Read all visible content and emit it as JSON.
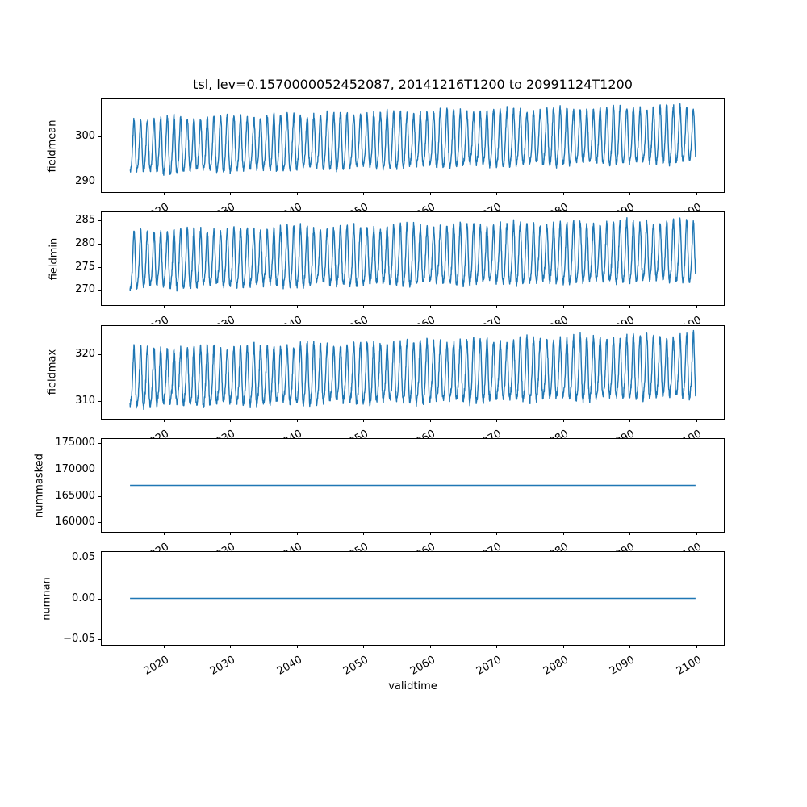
{
  "figure": {
    "background": "#ffffff"
  },
  "chart_data": {
    "type": "line",
    "title": "tsl, lev=0.1570000052452087, 20141216T1200 to 20991124T1200",
    "variable": "tsl",
    "level": "0.1570000052452087",
    "time_range": {
      "start": "20141216T1200",
      "end": "20991124T1200"
    },
    "xlabel": "validtime",
    "x_start_year": 2014.96,
    "x_end_year": 2099.9,
    "xlim": [
      2010.71,
      2104.15
    ],
    "xticks": [
      2020,
      2030,
      2040,
      2050,
      2060,
      2070,
      2080,
      2090,
      2100
    ],
    "xtick_labels": [
      "2020",
      "2030",
      "2040",
      "2050",
      "2060",
      "2070",
      "2080",
      "2090",
      "2100"
    ],
    "line_color": "#1f77b4",
    "axis_color": "#000000",
    "grid": false,
    "legend_position": "none",
    "subplots": [
      {
        "ylabel": "fieldmean",
        "yticks": [
          290,
          300
        ],
        "ytick_labels": [
          "290",
          "300"
        ],
        "ylim": [
          287.8,
          308.0
        ],
        "series": {
          "kind": "seasonal",
          "seed": 11,
          "mean_start": 297.2,
          "mean_end": 299.8,
          "amplitude": 5.6,
          "amp_growth": 0.05,
          "harmonic2": 1.0,
          "noise": 0.8,
          "approx_range_start": [
            290.0,
            304.3
          ],
          "approx_range_end": [
            292.8,
            306.9
          ]
        }
      },
      {
        "ylabel": "fieldmin",
        "yticks": [
          270,
          275,
          280,
          285
        ],
        "ytick_labels": [
          "270",
          "275",
          "280",
          "285"
        ],
        "ylim": [
          266.7,
          286.7
        ],
        "series": {
          "kind": "seasonal",
          "seed": 22,
          "mean_start": 275.8,
          "mean_end": 277.6,
          "amplitude": 5.8,
          "amp_growth": 0.06,
          "harmonic2": 1.1,
          "noise": 0.9,
          "approx_range_start": [
            268.4,
            282.8
          ],
          "approx_range_end": [
            269.9,
            285.4
          ]
        }
      },
      {
        "ylabel": "fieldmax",
        "yticks": [
          310,
          320
        ],
        "ytick_labels": [
          "310",
          "320"
        ],
        "ylim": [
          306.3,
          326.1
        ],
        "series": {
          "kind": "seasonal",
          "seed": 33,
          "mean_start": 314.3,
          "mean_end": 316.7,
          "amplitude": 5.7,
          "amp_growth": 0.1,
          "harmonic2": 1.2,
          "noise": 1.0,
          "approx_range_start": [
            307.4,
            321.4
          ],
          "approx_range_end": [
            308.5,
            324.9
          ]
        }
      },
      {
        "ylabel": "nummasked",
        "yticks": [
          160000,
          165000,
          170000,
          175000
        ],
        "ytick_labels": [
          "160000",
          "165000",
          "170000",
          "175000"
        ],
        "ylim": [
          158200,
          175800
        ],
        "series": {
          "kind": "constant",
          "value": 167000
        }
      },
      {
        "ylabel": "numnan",
        "yticks": [
          -0.05,
          0.0,
          0.05
        ],
        "ytick_labels": [
          "−0.05",
          "0.00",
          "0.05"
        ],
        "ylim": [
          -0.057,
          0.057
        ],
        "series": {
          "kind": "constant",
          "value": 0.0
        }
      }
    ]
  }
}
